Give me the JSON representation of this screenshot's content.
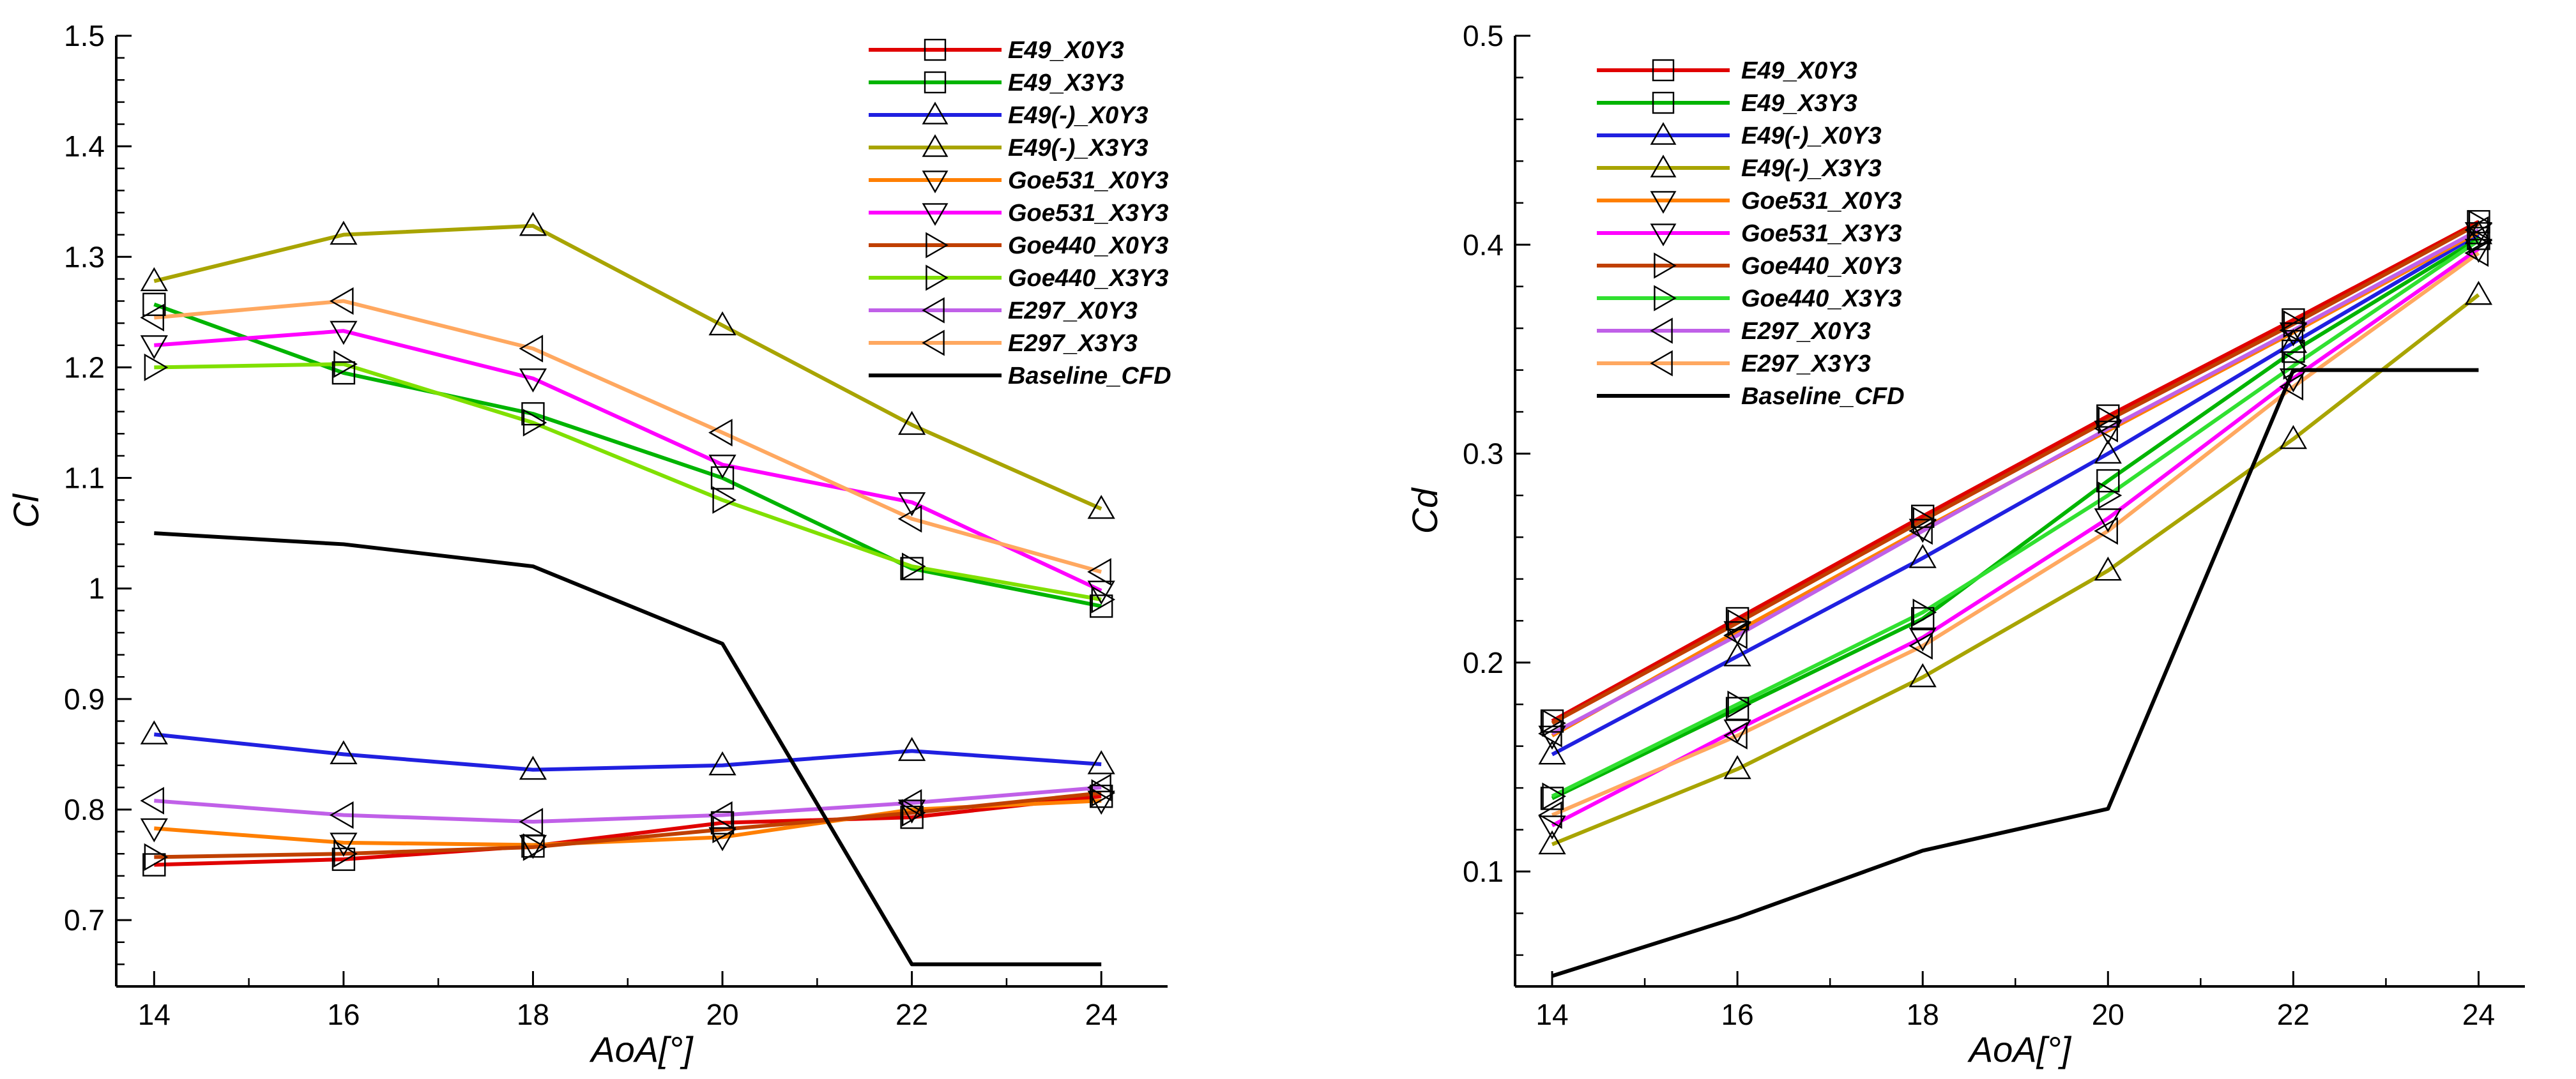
{
  "chart_data": [
    {
      "type": "line",
      "xlabel": "AoA[°]",
      "ylabel": "Cl",
      "xlim": [
        13.6,
        24.7
      ],
      "ylim": [
        0.64,
        1.5
      ],
      "x_ticks": [
        "14",
        "16",
        "18",
        "20",
        "22",
        "24"
      ],
      "y_ticks": [
        "0.7",
        "0.8",
        "0.9",
        "1",
        "1.1",
        "1.2",
        "1.3",
        "1.4",
        "1.5"
      ],
      "legend_position": "top-right",
      "x": [
        14,
        16,
        18,
        20,
        22,
        24
      ],
      "series": [
        {
          "name": "E49_X0Y3",
          "color": "#e00000",
          "marker": "square",
          "values": [
            0.75,
            0.755,
            0.767,
            0.788,
            0.793,
            0.812
          ]
        },
        {
          "name": "E49_X3Y3",
          "color": "#00b400",
          "marker": "square",
          "values": [
            1.257,
            1.195,
            1.158,
            1.1,
            1.018,
            0.984
          ]
        },
        {
          "name": "E49(-)_X0Y3",
          "color": "#2020e0",
          "marker": "triangle-up",
          "values": [
            0.868,
            0.85,
            0.836,
            0.84,
            0.853,
            0.841
          ]
        },
        {
          "name": "E49(-)_X3Y3",
          "color": "#a8a400",
          "marker": "triangle-up",
          "values": [
            1.278,
            1.32,
            1.328,
            1.238,
            1.148,
            1.072
          ]
        },
        {
          "name": "Goe531_X0Y3",
          "color": "#ff7f00",
          "marker": "triangle-down",
          "values": [
            0.783,
            0.77,
            0.768,
            0.775,
            0.8,
            0.808
          ]
        },
        {
          "name": "Goe531_X3Y3",
          "color": "#ff00ff",
          "marker": "triangle-down",
          "values": [
            1.22,
            1.233,
            1.19,
            1.112,
            1.078,
            0.998
          ]
        },
        {
          "name": "Goe440_X0Y3",
          "color": "#c04000",
          "marker": "triangle-right",
          "values": [
            0.757,
            0.76,
            0.766,
            0.782,
            0.797,
            0.815
          ]
        },
        {
          "name": "Goe440_X3Y3",
          "color": "#80e000",
          "marker": "triangle-right",
          "values": [
            1.2,
            1.203,
            1.15,
            1.08,
            1.02,
            0.99
          ]
        },
        {
          "name": "E297_X0Y3",
          "color": "#c060e8",
          "marker": "triangle-left",
          "values": [
            0.808,
            0.795,
            0.789,
            0.795,
            0.806,
            0.82
          ]
        },
        {
          "name": "E297_X3Y3",
          "color": "#ffa860",
          "marker": "triangle-left",
          "values": [
            1.245,
            1.26,
            1.217,
            1.141,
            1.063,
            1.015
          ]
        },
        {
          "name": "Baseline_CFD",
          "color": "#000000",
          "marker": "none",
          "values": [
            1.05,
            1.04,
            1.02,
            0.95,
            0.66,
            0.66
          ]
        }
      ]
    },
    {
      "type": "line",
      "xlabel": "AoA[°]",
      "ylabel": "Cd",
      "xlim": [
        13.6,
        24.5
      ],
      "ylim": [
        0.045,
        0.5
      ],
      "x_ticks": [
        "14",
        "16",
        "18",
        "20",
        "22",
        "24"
      ],
      "y_ticks": [
        "0.1",
        "0.2",
        "0.3",
        "0.4",
        "0.5"
      ],
      "legend_position": "top-left",
      "x": [
        14,
        16,
        18,
        20,
        22,
        24
      ],
      "series": [
        {
          "name": "E49_X0Y3",
          "color": "#e00000",
          "marker": "square",
          "values": [
            0.172,
            0.221,
            0.27,
            0.318,
            0.364,
            0.411
          ]
        },
        {
          "name": "E49_X3Y3",
          "color": "#00b400",
          "marker": "square",
          "values": [
            0.135,
            0.178,
            0.221,
            0.287,
            0.349,
            0.403
          ]
        },
        {
          "name": "E49(-)_X0Y3",
          "color": "#2020e0",
          "marker": "triangle-up",
          "values": [
            0.156,
            0.203,
            0.25,
            0.3,
            0.353,
            0.405
          ]
        },
        {
          "name": "E49(-)_X3Y3",
          "color": "#a8a400",
          "marker": "triangle-up",
          "values": [
            0.113,
            0.149,
            0.193,
            0.244,
            0.307,
            0.376
          ]
        },
        {
          "name": "Goe531_X0Y3",
          "color": "#ff7f00",
          "marker": "triangle-down",
          "values": [
            0.165,
            0.215,
            0.264,
            0.311,
            0.358,
            0.406
          ]
        },
        {
          "name": "Goe531_X3Y3",
          "color": "#ff00ff",
          "marker": "triangle-down",
          "values": [
            0.122,
            0.168,
            0.212,
            0.269,
            0.336,
            0.398
          ]
        },
        {
          "name": "Goe440_X0Y3",
          "color": "#c04000",
          "marker": "triangle-right",
          "values": [
            0.171,
            0.219,
            0.268,
            0.316,
            0.362,
            0.41
          ]
        },
        {
          "name": "Goe440_X3Y3",
          "color": "#30e030",
          "marker": "triangle-right",
          "values": [
            0.136,
            0.18,
            0.224,
            0.28,
            0.342,
            0.402
          ]
        },
        {
          "name": "E297_X0Y3",
          "color": "#c060e8",
          "marker": "triangle-left",
          "values": [
            0.166,
            0.213,
            0.263,
            0.312,
            0.359,
            0.407
          ]
        },
        {
          "name": "E297_X3Y3",
          "color": "#ffa860",
          "marker": "triangle-left",
          "values": [
            0.127,
            0.165,
            0.208,
            0.263,
            0.332,
            0.396
          ]
        },
        {
          "name": "Baseline_CFD",
          "color": "#000000",
          "marker": "none",
          "values": [
            0.05,
            0.078,
            0.11,
            0.13,
            0.34,
            0.34
          ]
        }
      ]
    }
  ]
}
